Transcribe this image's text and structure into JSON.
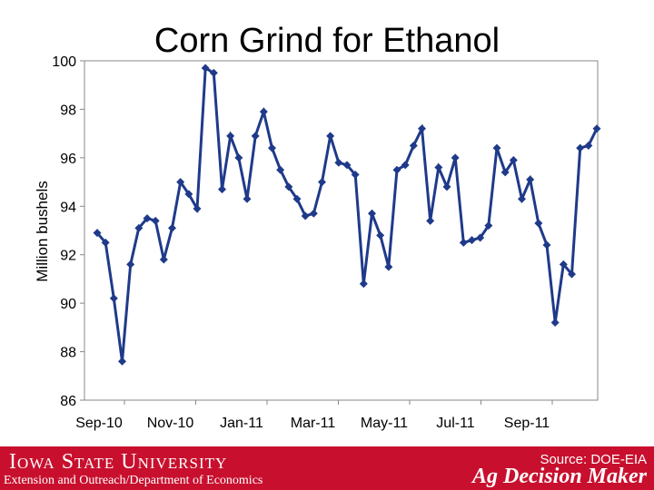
{
  "chart_data": {
    "type": "line",
    "title": "Corn Grind for Ethanol",
    "xlabel": "",
    "ylabel": "Million bushels",
    "ylim": [
      86,
      100
    ],
    "yticks": [
      86,
      88,
      90,
      92,
      94,
      96,
      98,
      100
    ],
    "x_tick_labels": [
      "Sep-10",
      "Nov-10",
      "Jan-11",
      "Mar-11",
      "May-11",
      "Jul-11",
      "Sep-11"
    ],
    "grid": false,
    "legend": "none",
    "series": [
      {
        "values": [
          92.9,
          92.5,
          90.2,
          87.6,
          91.6,
          93.1,
          93.5,
          93.4,
          91.8,
          93.1,
          95.0,
          94.5,
          93.9,
          99.7,
          99.5,
          94.7,
          96.9,
          96.0,
          94.3,
          96.9,
          97.9,
          96.4,
          95.5,
          94.8,
          94.3,
          93.6,
          93.7,
          95.0,
          96.9,
          95.8,
          95.7,
          95.3,
          90.8,
          93.7,
          92.8,
          91.5,
          95.5,
          95.7,
          96.5,
          97.2,
          93.4,
          95.6,
          94.8,
          96.0,
          92.5,
          92.6,
          92.7,
          93.2,
          96.4,
          95.4,
          95.9,
          94.3,
          95.1,
          93.3,
          92.4,
          89.2,
          91.6,
          91.2,
          96.4,
          96.5,
          97.2
        ],
        "color": "#1f3a8a"
      }
    ]
  },
  "footer": {
    "university": "Iowa State University",
    "department": "Extension and Outreach/Department of Economics",
    "source": "Source: DOE-EIA",
    "brand": "Ag Decision Maker",
    "background": "#c8102e"
  }
}
